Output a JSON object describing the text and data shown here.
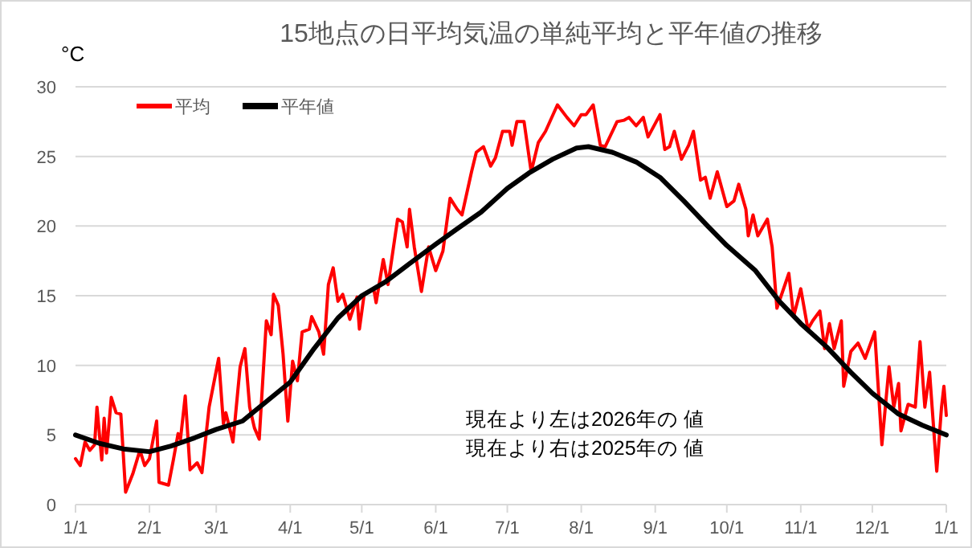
{
  "chart_data": {
    "type": "line",
    "title": "15地点の日平均気温の単純平均と平年値の推移",
    "ylabel": "°C",
    "xlim": [
      "2025-01-01",
      "2026-01-01"
    ],
    "xticks": [
      {
        "value": "2025-01-01",
        "label": "1/1"
      },
      {
        "value": "2025-02-01",
        "label": "2/1"
      },
      {
        "value": "2025-03-01",
        "label": "3/1"
      },
      {
        "value": "2025-04-01",
        "label": "4/1"
      },
      {
        "value": "2025-05-01",
        "label": "5/1"
      },
      {
        "value": "2025-06-01",
        "label": "6/1"
      },
      {
        "value": "2025-07-01",
        "label": "7/1"
      },
      {
        "value": "2025-08-01",
        "label": "8/1"
      },
      {
        "value": "2025-09-01",
        "label": "9/1"
      },
      {
        "value": "2025-10-01",
        "label": "10/1"
      },
      {
        "value": "2025-11-01",
        "label": "11/1"
      },
      {
        "value": "2025-12-01",
        "label": "12/1"
      },
      {
        "value": "2026-01-01",
        "label": "1/1"
      }
    ],
    "ylim": [
      0,
      30
    ],
    "yticks": [
      0,
      5,
      10,
      15,
      20,
      25,
      30
    ],
    "grid": "y",
    "legend": "top left",
    "line_style": "solid",
    "marker": "none",
    "annotations": [
      "現在より左は2026年の 値",
      "現在より右は2025年の 値"
    ],
    "series": [
      {
        "name": "平均",
        "color": "#ff0000",
        "x": [
          "2025-01-01",
          "2025-01-03",
          "2025-01-05",
          "2025-01-07",
          "2025-01-09",
          "2025-01-10",
          "2025-01-12",
          "2025-01-13",
          "2025-01-14",
          "2025-01-16",
          "2025-01-18",
          "2025-01-20",
          "2025-01-22",
          "2025-01-25",
          "2025-01-28",
          "2025-01-30",
          "2025-02-01",
          "2025-02-04",
          "2025-02-05",
          "2025-02-09",
          "2025-02-11",
          "2025-02-13",
          "2025-02-14",
          "2025-02-16",
          "2025-02-18",
          "2025-02-21",
          "2025-02-23",
          "2025-02-26",
          "2025-03-02",
          "2025-03-04",
          "2025-03-05",
          "2025-03-08",
          "2025-03-11",
          "2025-03-13",
          "2025-03-15",
          "2025-03-17",
          "2025-03-19",
          "2025-03-22",
          "2025-03-24",
          "2025-03-25",
          "2025-03-27",
          "2025-03-29",
          "2025-03-31",
          "2025-04-02",
          "2025-04-04",
          "2025-04-06",
          "2025-04-09",
          "2025-04-10",
          "2025-04-13",
          "2025-04-15",
          "2025-04-17",
          "2025-04-19",
          "2025-04-21",
          "2025-04-23",
          "2025-04-26",
          "2025-04-29",
          "2025-04-30",
          "2025-05-02",
          "2025-05-06",
          "2025-05-07",
          "2025-05-10",
          "2025-05-12",
          "2025-05-16",
          "2025-05-18",
          "2025-05-20",
          "2025-05-21",
          "2025-05-23",
          "2025-05-26",
          "2025-05-29",
          "2025-06-01",
          "2025-06-04",
          "2025-06-07",
          "2025-06-10",
          "2025-06-12",
          "2025-06-16",
          "2025-06-18",
          "2025-06-21",
          "2025-06-24",
          "2025-06-26",
          "2025-06-29",
          "2025-07-02",
          "2025-07-03",
          "2025-07-05",
          "2025-07-08",
          "2025-07-11",
          "2025-07-14",
          "2025-07-17",
          "2025-07-22",
          "2025-07-26",
          "2025-07-29",
          "2025-08-01",
          "2025-08-03",
          "2025-08-06",
          "2025-08-09",
          "2025-08-11",
          "2025-08-16",
          "2025-08-19",
          "2025-08-21",
          "2025-08-24",
          "2025-08-27",
          "2025-08-29",
          "2025-09-03",
          "2025-09-05",
          "2025-09-07",
          "2025-09-09",
          "2025-09-12",
          "2025-09-15",
          "2025-09-17",
          "2025-09-20",
          "2025-09-22",
          "2025-09-24",
          "2025-09-27",
          "2025-10-01",
          "2025-10-04",
          "2025-10-06",
          "2025-10-09",
          "2025-10-10",
          "2025-10-12",
          "2025-10-14",
          "2025-10-18",
          "2025-10-20",
          "2025-10-22",
          "2025-10-24",
          "2025-10-27",
          "2025-10-29",
          "2025-11-01",
          "2025-11-04",
          "2025-11-06",
          "2025-11-09",
          "2025-11-11",
          "2025-11-13",
          "2025-11-15",
          "2025-11-18",
          "2025-11-19",
          "2025-11-22",
          "2025-11-25",
          "2025-11-28",
          "2025-12-02",
          "2025-12-05",
          "2025-12-08",
          "2025-12-10",
          "2025-12-12",
          "2025-12-13",
          "2025-12-16",
          "2025-12-19",
          "2025-12-21",
          "2025-12-23",
          "2025-12-25",
          "2025-12-28",
          "2025-12-30",
          "2025-12-31",
          "2026-01-01"
        ],
        "values": [
          3.3,
          2.8,
          4.5,
          3.9,
          4.3,
          7.0,
          3.2,
          6.2,
          3.7,
          7.7,
          6.6,
          6.5,
          0.9,
          2.2,
          3.9,
          2.8,
          3.3,
          6.0,
          1.6,
          1.4,
          3.2,
          5.1,
          4.7,
          7.8,
          2.5,
          3.0,
          2.3,
          7.0,
          10.5,
          5.8,
          6.6,
          4.5,
          9.9,
          11.2,
          7.0,
          5.5,
          4.7,
          13.2,
          12.2,
          15.1,
          14.3,
          10.8,
          6.0,
          10.3,
          8.9,
          12.4,
          12.6,
          13.5,
          12.4,
          10.8,
          15.8,
          17.0,
          14.6,
          15.1,
          13.3,
          14.9,
          12.6,
          15.1,
          15.5,
          14.5,
          17.6,
          15.8,
          20.5,
          20.3,
          18.5,
          21.2,
          18.5,
          15.3,
          18.5,
          16.8,
          18.2,
          22.0,
          21.2,
          20.8,
          23.9,
          25.3,
          25.7,
          24.3,
          24.9,
          26.8,
          26.8,
          25.8,
          27.5,
          27.5,
          23.9,
          26.0,
          26.8,
          28.7,
          27.8,
          27.2,
          28.0,
          28.0,
          28.7,
          25.8,
          25.7,
          27.5,
          27.6,
          27.8,
          27.2,
          27.8,
          26.4,
          28.0,
          25.5,
          25.7,
          26.8,
          24.8,
          25.8,
          26.8,
          23.3,
          23.5,
          22.0,
          23.9,
          21.4,
          21.8,
          23.0,
          21.2,
          19.3,
          20.8,
          19.3,
          20.5,
          18.5,
          14.1,
          15.1,
          16.6,
          13.5,
          15.5,
          12.6,
          13.2,
          13.9,
          11.2,
          13.0,
          11.2,
          13.2,
          8.5,
          11.0,
          11.6,
          10.5,
          12.4,
          4.3,
          9.9,
          7.0,
          8.7,
          5.3,
          7.2,
          7.0,
          11.7,
          7.0,
          9.5,
          2.4,
          7.0,
          8.5,
          6.4
        ]
      },
      {
        "name": "平年値",
        "color": "#000000",
        "x": [
          "2025-01-01",
          "2025-01-11",
          "2025-01-21",
          "2025-02-01",
          "2025-02-10",
          "2025-02-20",
          "2025-03-01",
          "2025-03-12",
          "2025-03-22",
          "2025-04-01",
          "2025-04-11",
          "2025-04-21",
          "2025-05-01",
          "2025-05-11",
          "2025-05-21",
          "2025-06-01",
          "2025-06-10",
          "2025-06-20",
          "2025-07-01",
          "2025-07-10",
          "2025-07-20",
          "2025-07-30",
          "2025-08-04",
          "2025-08-14",
          "2025-08-24",
          "2025-09-03",
          "2025-09-13",
          "2025-09-23",
          "2025-10-01",
          "2025-10-13",
          "2025-10-23",
          "2025-11-01",
          "2025-11-12",
          "2025-11-22",
          "2025-12-01",
          "2025-12-12",
          "2025-12-22",
          "2026-01-01"
        ],
        "values": [
          5.0,
          4.4,
          4.0,
          3.8,
          4.2,
          4.8,
          5.4,
          6.0,
          7.4,
          8.8,
          11.2,
          13.4,
          15.0,
          16.0,
          17.3,
          18.7,
          19.8,
          21.0,
          22.7,
          23.8,
          24.8,
          25.6,
          25.7,
          25.3,
          24.6,
          23.5,
          21.8,
          20.0,
          18.6,
          16.8,
          14.6,
          13.0,
          11.3,
          9.5,
          8.0,
          6.5,
          5.7,
          5.0
        ]
      }
    ]
  }
}
